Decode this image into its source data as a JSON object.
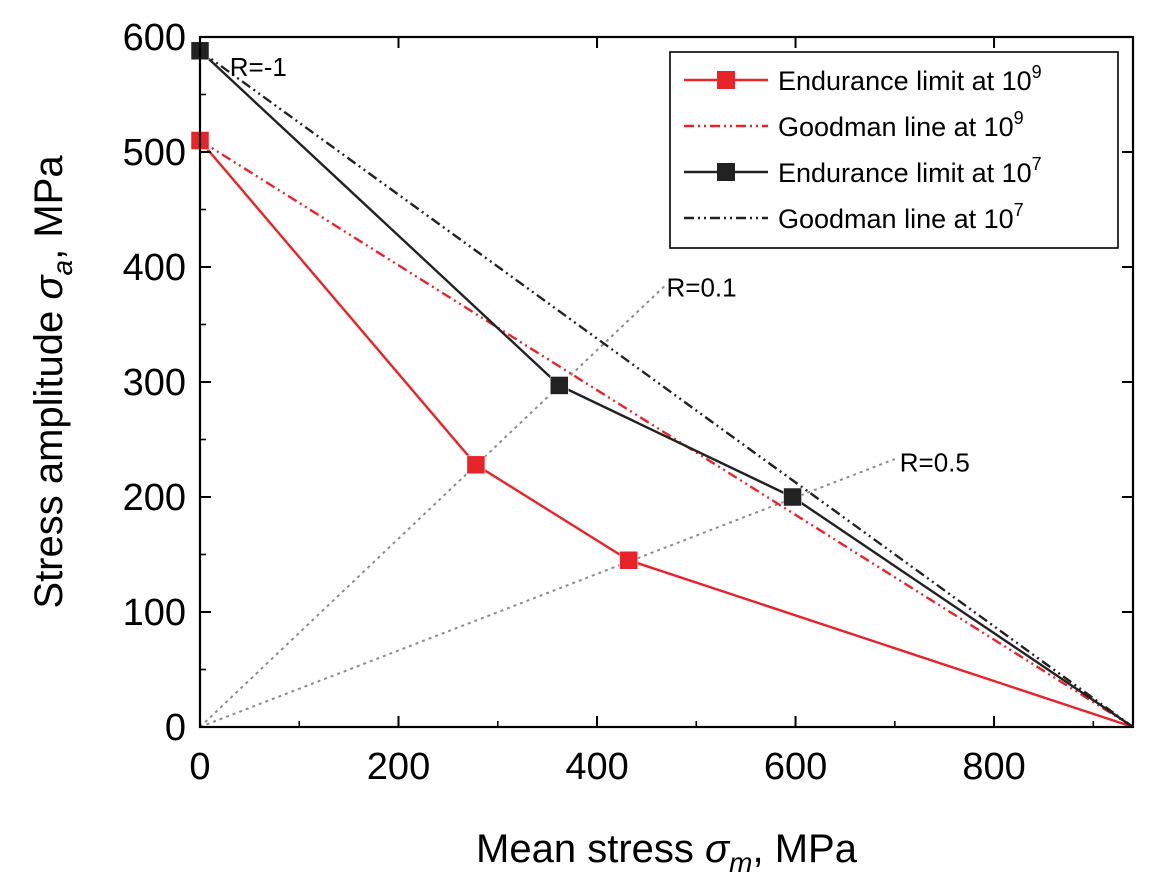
{
  "chart_data": {
    "type": "line",
    "title": "",
    "xlabel": "Mean stress σm, MPa",
    "ylabel": "Stress amplitude σa, MPa",
    "xlabel_parts": {
      "text": "Mean stress ",
      "symbol": "σ",
      "sub": "m",
      "unit": ", MPa"
    },
    "ylabel_parts": {
      "text": "Stress amplitude ",
      "symbol": "σ",
      "sub": "a",
      "unit": ", MPa"
    },
    "xlim": [
      0,
      940
    ],
    "ylim": [
      0,
      600
    ],
    "xticks": [
      0,
      200,
      400,
      600,
      800
    ],
    "yticks": [
      0,
      100,
      200,
      300,
      400,
      500,
      600
    ],
    "xticks_minor": [
      100,
      300,
      500,
      700,
      900
    ],
    "yticks_minor": [
      50,
      150,
      250,
      350,
      450,
      550
    ],
    "grid": false,
    "legend_position": "top-right",
    "series": [
      {
        "name": "Endurance limit at 10^9",
        "label_text": "Endurance limit at 10",
        "label_exp": "9",
        "color": "#e8232a",
        "style": "solid",
        "marker": "square",
        "x": [
          0,
          278,
          432,
          940
        ],
        "y": [
          510,
          228,
          145,
          0
        ],
        "marker_points": [
          [
            0,
            510
          ],
          [
            278,
            228
          ],
          [
            432,
            145
          ]
        ]
      },
      {
        "name": "Goodman line at 10^9",
        "label_text": "Goodman line at 10",
        "label_exp": "9",
        "color": "#e8232a",
        "style": "dash-dot-dot",
        "marker": "none",
        "x": [
          0,
          940
        ],
        "y": [
          510,
          0
        ]
      },
      {
        "name": "Endurance limit at 10^7",
        "label_text": "Endurance limit at 10",
        "label_exp": "7",
        "color": "#222222",
        "style": "solid",
        "marker": "square",
        "x": [
          0,
          362,
          597,
          940
        ],
        "y": [
          588,
          297,
          200,
          0
        ],
        "marker_points": [
          [
            0,
            588
          ],
          [
            362,
            297
          ],
          [
            597,
            200
          ]
        ]
      },
      {
        "name": "Goodman line at 10^7",
        "label_text": "Goodman line at 10",
        "label_exp": "7",
        "color": "#222222",
        "style": "dash-dot-dot",
        "marker": "none",
        "x": [
          0,
          940
        ],
        "y": [
          588,
          0
        ]
      }
    ],
    "reference_lines": [
      {
        "name": "R=0.1",
        "color": "#8c8c8c",
        "style": "dotted",
        "x": [
          0,
          470
        ],
        "y": [
          0,
          385
        ]
      },
      {
        "name": "R=0.5",
        "color": "#8c8c8c",
        "style": "dotted",
        "x": [
          0,
          700
        ],
        "y": [
          0,
          233
        ]
      }
    ],
    "annotations": [
      {
        "text": "R=-1",
        "x": 30,
        "y": 574
      },
      {
        "text": "R=0.1",
        "x": 470,
        "y": 382
      },
      {
        "text": "R=0.5",
        "x": 705,
        "y": 230
      }
    ]
  }
}
